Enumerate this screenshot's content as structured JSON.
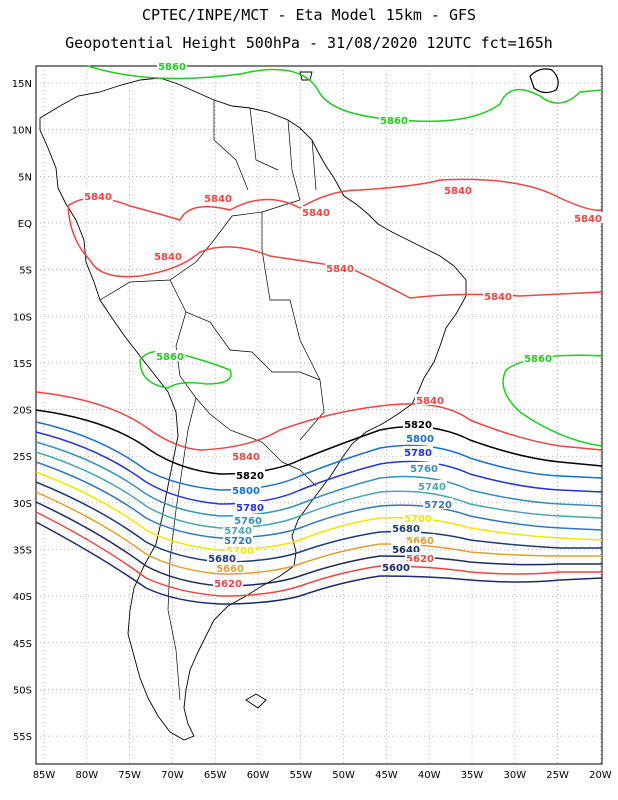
{
  "header": {
    "line1": "CPTEC/INPE/MCT -  Eta Model 15km - GFS",
    "line2": "Geopotential Height 500hPa - 31/08/2020 12UTC fct=165h"
  },
  "axes": {
    "lat_labels": [
      "15N",
      "10N",
      "5N",
      "EQ",
      "5S",
      "10S",
      "15S",
      "20S",
      "25S",
      "30S",
      "35S",
      "40S",
      "45S",
      "50S",
      "55S"
    ],
    "lon_labels": [
      "85W",
      "80W",
      "75W",
      "70W",
      "65W",
      "60W",
      "55W",
      "50W",
      "45W",
      "40W",
      "35W",
      "30W",
      "25W",
      "20W"
    ]
  },
  "colors": {
    "c5860": "#22cc22",
    "c5840": "#ee4444",
    "c5820": "#000000",
    "c5800": "#1a6fcc",
    "c5780": "#2233dd",
    "c5760": "#3a8fb8",
    "c5740": "#4aa6b0",
    "c5720": "#3377bb",
    "c5700": "#f2e600",
    "c5680": "#1a3a7a",
    "c5660": "#e0a030",
    "c5640": "#1a2a5a",
    "c5620": "#ee4444",
    "c5600": "#1a2a6a"
  },
  "contour_labels": [
    {
      "text": "5860",
      "color": "c5860"
    },
    {
      "text": "5860",
      "color": "c5860"
    },
    {
      "text": "5860",
      "color": "c5860"
    },
    {
      "text": "5860",
      "color": "c5860"
    },
    {
      "text": "5840",
      "color": "c5840"
    },
    {
      "text": "5840",
      "color": "c5840"
    },
    {
      "text": "5840",
      "color": "c5840"
    },
    {
      "text": "5840",
      "color": "c5840"
    },
    {
      "text": "5840",
      "color": "c5840"
    },
    {
      "text": "5840",
      "color": "c5840"
    },
    {
      "text": "5840",
      "color": "c5840"
    },
    {
      "text": "5840",
      "color": "c5840"
    },
    {
      "text": "5840",
      "color": "c5840"
    },
    {
      "text": "5840",
      "color": "c5840"
    },
    {
      "text": "5820",
      "color": "c5820"
    },
    {
      "text": "5820",
      "color": "c5820"
    },
    {
      "text": "5800",
      "color": "c5800"
    },
    {
      "text": "5800",
      "color": "c5800"
    },
    {
      "text": "5780",
      "color": "c5780"
    },
    {
      "text": "5780",
      "color": "c5780"
    },
    {
      "text": "5760",
      "color": "c5760"
    },
    {
      "text": "5760",
      "color": "c5760"
    },
    {
      "text": "5740",
      "color": "c5740"
    },
    {
      "text": "5740",
      "color": "c5740"
    },
    {
      "text": "5720",
      "color": "c5720"
    },
    {
      "text": "5720",
      "color": "c5720"
    },
    {
      "text": "5700",
      "color": "c5700"
    },
    {
      "text": "5700",
      "color": "c5700"
    },
    {
      "text": "5680",
      "color": "c5680"
    },
    {
      "text": "5680",
      "color": "c5680"
    },
    {
      "text": "5660",
      "color": "c5660"
    },
    {
      "text": "5660",
      "color": "c5660"
    },
    {
      "text": "5640",
      "color": "c5640"
    },
    {
      "text": "5620",
      "color": "c5620"
    },
    {
      "text": "5620",
      "color": "c5620"
    },
    {
      "text": "5600",
      "color": "c5600"
    }
  ]
}
